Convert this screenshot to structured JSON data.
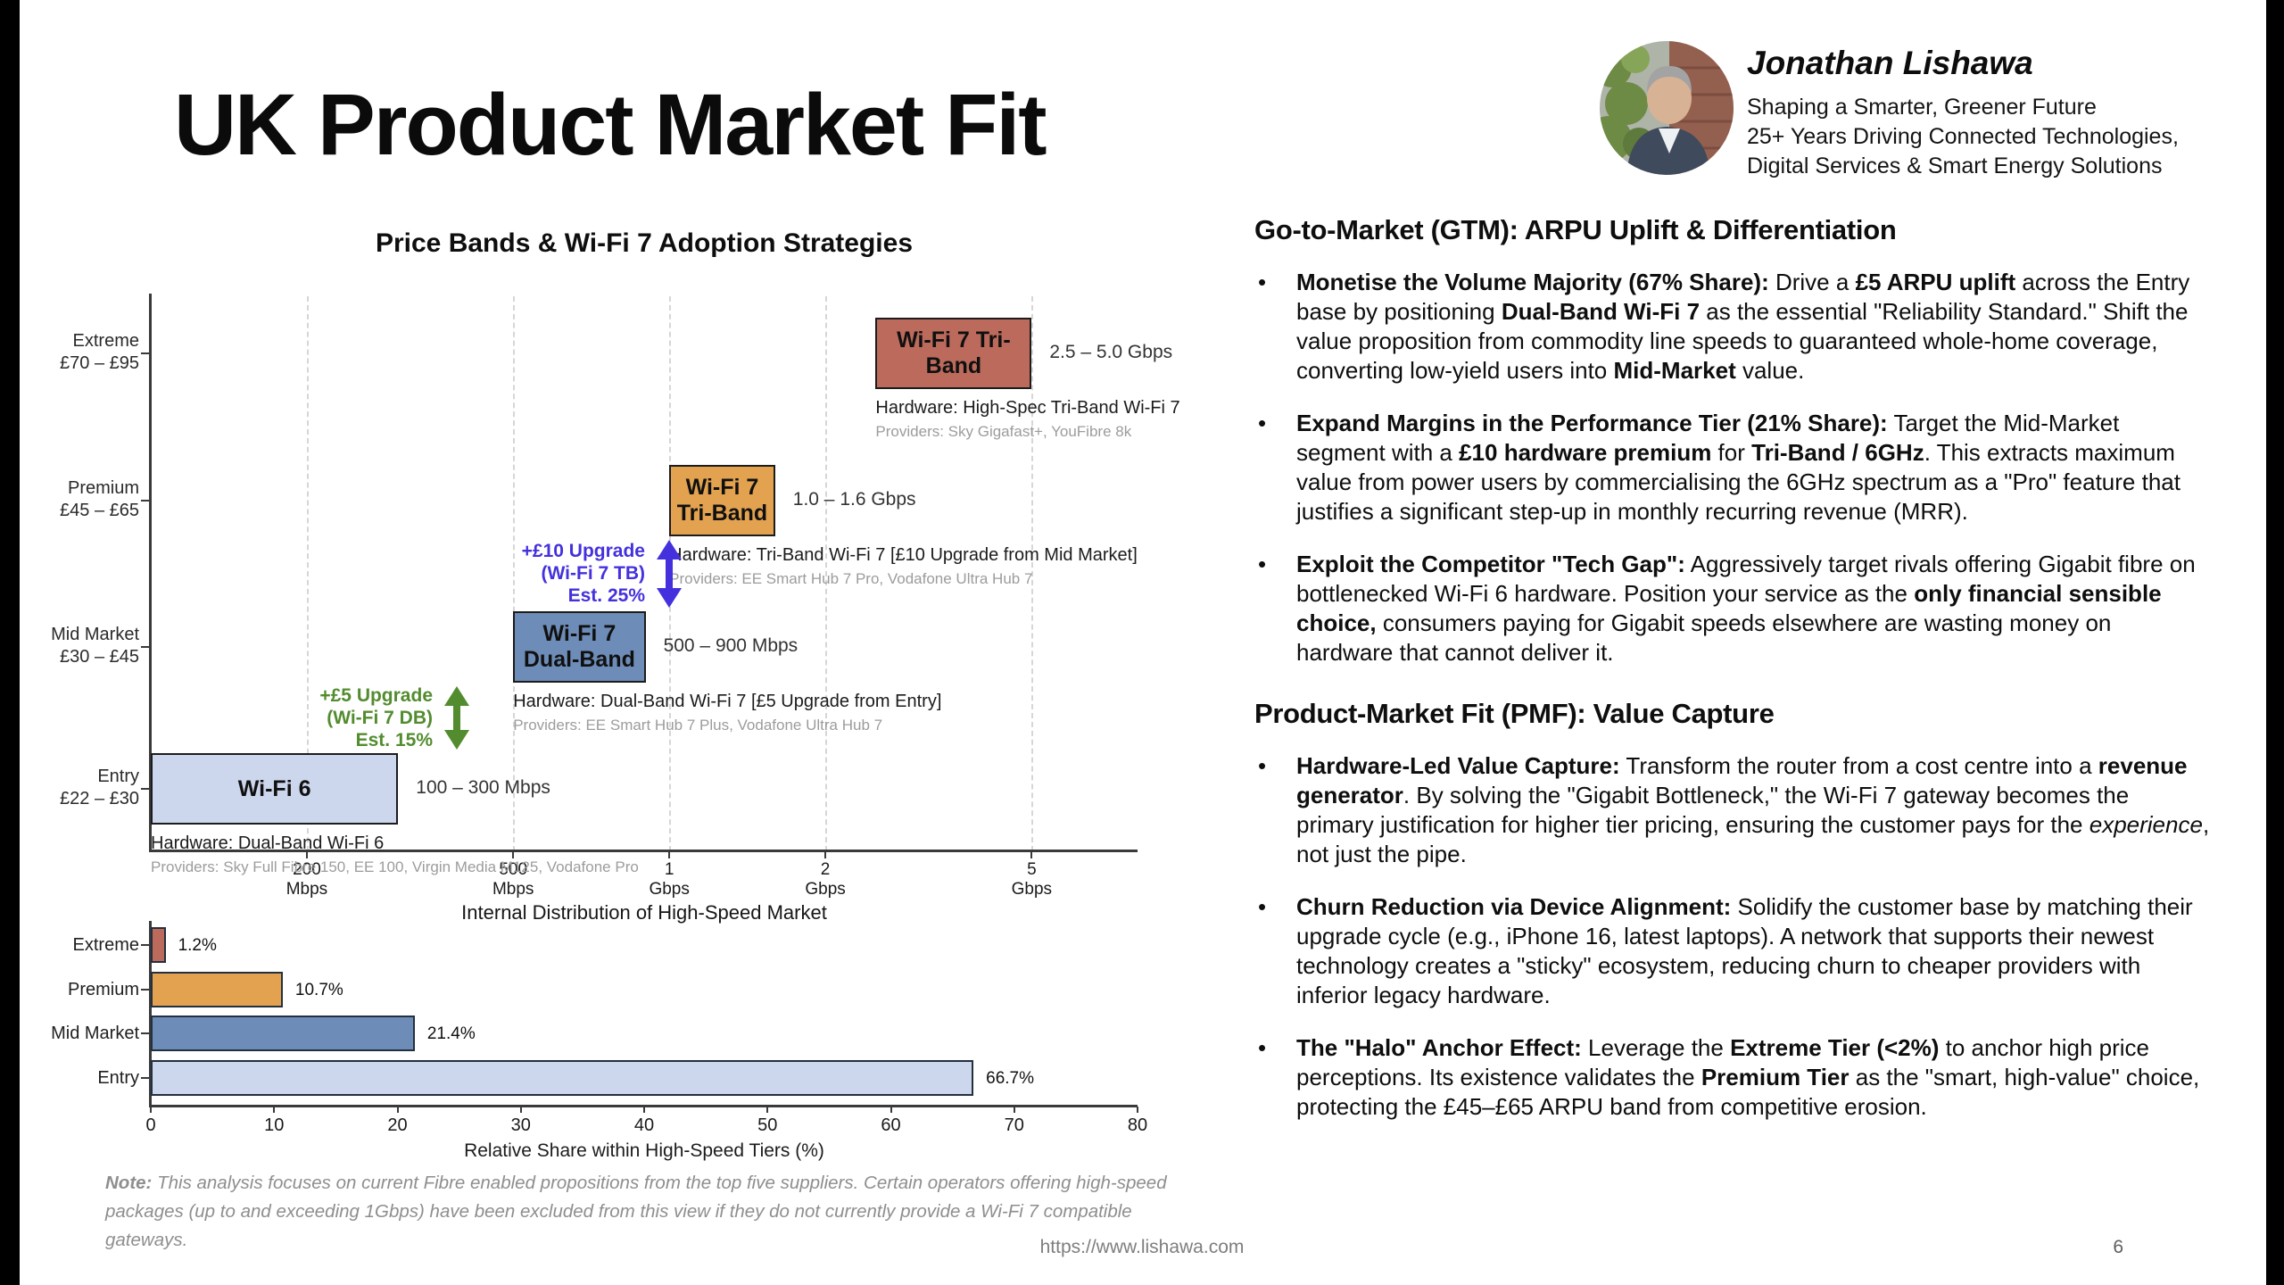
{
  "slide": {
    "title": "UK Product Market Fit",
    "footer_url": "https://www.lishawa.com",
    "page_number": "6"
  },
  "profile": {
    "name": "Jonathan Lishawa",
    "lines": [
      "Shaping a Smarter, Greener Future",
      "25+ Years Driving Connected Technologies,",
      "Digital Services & Smart Energy Solutions"
    ]
  },
  "note": {
    "label": "Note:",
    "text": " This analysis focuses on current Fibre enabled propositions from the top five suppliers. Certain operators offering high-speed packages (up to and exceeding 1Gbps) have been excluded from this view if they do not currently provide a Wi-Fi 7 compatible gateways."
  },
  "chart_data": [
    {
      "type": "scatter",
      "title": "Price Bands & Wi-Fi 7 Adoption Strategies",
      "x_scale": "log",
      "x_range_mbps": [
        100,
        8000
      ],
      "grid": true,
      "x_ticks": [
        {
          "mbps": 200,
          "line1": "200",
          "line2": "Mbps"
        },
        {
          "mbps": 500,
          "line1": "500",
          "line2": "Mbps"
        },
        {
          "mbps": 1000,
          "line1": "1",
          "line2": "Gbps"
        },
        {
          "mbps": 2000,
          "line1": "2",
          "line2": "Gbps"
        },
        {
          "mbps": 5000,
          "line1": "5",
          "line2": "Gbps"
        }
      ],
      "tiers": [
        {
          "id": "extreme",
          "name": "Extreme",
          "price_band": "£70 – £95"
        },
        {
          "id": "premium",
          "name": "Premium",
          "price_band": "£45 – £65"
        },
        {
          "id": "mid",
          "name": "Mid Market",
          "price_band": "£30 – £45"
        },
        {
          "id": "entry",
          "name": "Entry",
          "price_band": "£22 – £30"
        }
      ],
      "boxes": [
        {
          "tier": "extreme",
          "label": "Wi-Fi 7 Tri-Band",
          "speed_mbps": [
            2500,
            5000
          ],
          "speed_label": "2.5 – 5.0 Gbps",
          "hardware": "Hardware: High-Spec Tri-Band Wi-Fi 7",
          "providers": "Providers: Sky Gigafast+, YouFibre 8k",
          "fill": "#bb6a5c"
        },
        {
          "tier": "premium",
          "label": "Wi-Fi 7\nTri-Band",
          "speed_mbps": [
            1000,
            1600
          ],
          "speed_label": "1.0 – 1.6 Gbps",
          "hardware": "Hardware: Tri-Band Wi-Fi 7 [£10 Upgrade from Mid Market]",
          "providers": "Providers: EE Smart Hub 7 Pro, Vodafone Ultra Hub 7",
          "fill": "#e2a24f"
        },
        {
          "tier": "mid",
          "label": "Wi-Fi 7\nDual-Band",
          "speed_mbps": [
            500,
            900
          ],
          "speed_label": "500 – 900 Mbps",
          "hardware": "Hardware: Dual-Band Wi-Fi 7 [£5 Upgrade from Entry]",
          "providers": "Providers: EE Smart Hub 7 Plus, Vodafone Ultra Hub 7",
          "fill": "#6d8cb8"
        },
        {
          "tier": "entry",
          "label": "Wi-Fi 6",
          "speed_mbps": [
            100,
            300
          ],
          "speed_label": "100 – 300 Mbps",
          "hardware": "Hardware: Dual-Band Wi-Fi 6",
          "providers": "Providers: Sky Full Fibre 150, EE 100, Virgin Media M125, Vodafone Pro",
          "fill": "#ccd6ec"
        }
      ],
      "annotations": [
        {
          "to_tier": "premium",
          "from_tier": "mid",
          "lines": [
            "+£10 Upgrade",
            "(Wi-Fi 7 TB)",
            "Est. 25%"
          ],
          "color": "#4431dd"
        },
        {
          "to_tier": "mid",
          "from_tier": "entry",
          "lines": [
            "+£5 Upgrade",
            "(Wi-Fi 7 DB)",
            "Est. 15%"
          ],
          "color": "#538c2e"
        }
      ]
    },
    {
      "type": "bar",
      "orientation": "horizontal",
      "title": "Internal Distribution of High-Speed Market",
      "categories": [
        "Extreme",
        "Premium",
        "Mid Market",
        "Entry"
      ],
      "values": [
        1.2,
        10.7,
        21.4,
        66.7
      ],
      "value_labels": [
        "1.2%",
        "10.7%",
        "21.4%",
        "66.7%"
      ],
      "colors": [
        "#bb6a5c",
        "#e2a24f",
        "#6d8cb8",
        "#ccd6ec"
      ],
      "xlabel": "Relative Share within High-Speed Tiers (%)",
      "xlim": [
        0,
        80
      ],
      "xticks": [
        0,
        10,
        20,
        30,
        40,
        50,
        60,
        70,
        80
      ],
      "grid": false,
      "legend": "none"
    }
  ],
  "sections": [
    {
      "heading": "Go-to-Market (GTM): ARPU Uplift & Differentiation",
      "bullets": [
        [
          {
            "t": "Monetise the Volume Majority (67% Share):",
            "b": true
          },
          {
            "t": " Drive a "
          },
          {
            "t": "£5 ARPU uplift",
            "b": true
          },
          {
            "t": " across the Entry base by positioning "
          },
          {
            "t": "Dual-Band Wi-Fi 7",
            "b": true
          },
          {
            "t": " as the essential \"Reliability Standard.\" Shift the value proposition from commodity line speeds to guaranteed whole-home coverage, converting low-yield users into "
          },
          {
            "t": "Mid-Market",
            "b": true
          },
          {
            "t": " value."
          }
        ],
        [
          {
            "t": "Expand Margins in the Performance Tier (21% Share):",
            "b": true
          },
          {
            "t": " Target the Mid-Market segment with a "
          },
          {
            "t": "£10 hardware premium",
            "b": true
          },
          {
            "t": " for "
          },
          {
            "t": "Tri-Band / 6GHz",
            "b": true
          },
          {
            "t": ". This extracts maximum value from power users by commercialising the 6GHz spectrum as a \"Pro\" feature that justifies a significant step-up in monthly recurring revenue (MRR)."
          }
        ],
        [
          {
            "t": "Exploit the Competitor \"Tech Gap\":",
            "b": true
          },
          {
            "t": " Aggressively target rivals offering Gigabit fibre on bottlenecked Wi-Fi 6 hardware. Position your service as the "
          },
          {
            "t": "only financial sensible choice,",
            "b": true
          },
          {
            "t": " consumers paying for Gigabit speeds elsewhere are wasting money on hardware that cannot deliver it."
          }
        ]
      ]
    },
    {
      "heading": "Product-Market Fit (PMF): Value Capture",
      "bullets": [
        [
          {
            "t": "Hardware-Led Value Capture:",
            "b": true
          },
          {
            "t": " Transform the router from a cost centre into a "
          },
          {
            "t": "revenue generator",
            "b": true
          },
          {
            "t": ". By solving the \"Gigabit Bottleneck,\" the Wi-Fi 7 gateway becomes the primary justification for higher tier pricing, ensuring the customer pays for the "
          },
          {
            "t": "experience",
            "i": true
          },
          {
            "t": ", not just the pipe."
          }
        ],
        [
          {
            "t": "Churn Reduction via Device Alignment:",
            "b": true
          },
          {
            "t": " Solidify the customer base by matching their upgrade cycle (e.g., iPhone 16, latest laptops). A network that supports their newest technology creates a \"sticky\" ecosystem, reducing churn to cheaper providers with inferior legacy hardware."
          }
        ],
        [
          {
            "t": "The \"Halo\" Anchor Effect:",
            "b": true
          },
          {
            "t": " Leverage the "
          },
          {
            "t": "Extreme Tier (<2%)",
            "b": true
          },
          {
            "t": " to anchor high price perceptions. Its existence validates the "
          },
          {
            "t": "Premium Tier",
            "b": true
          },
          {
            "t": " as the \"smart, high-value\" choice, protecting the £45–£65 ARPU band from competitive erosion."
          }
        ]
      ]
    }
  ]
}
